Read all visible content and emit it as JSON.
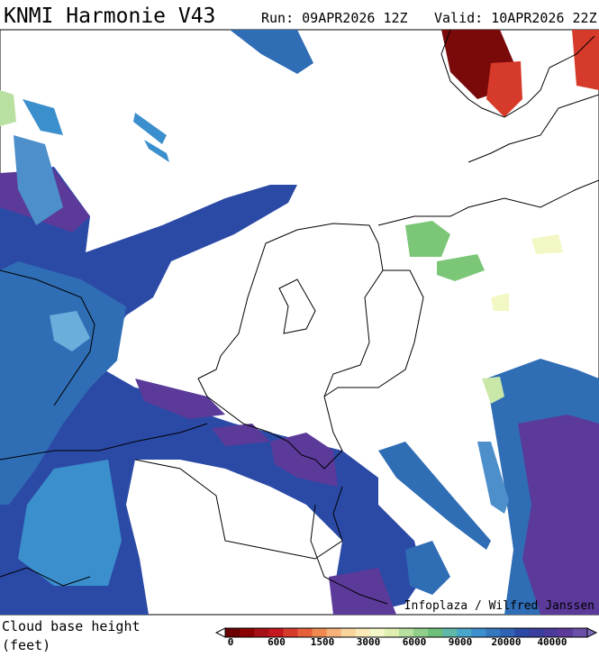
{
  "header": {
    "title": "KNMI Harmonie V43",
    "run": "Run: 09APR2026 12Z",
    "valid": "Valid: 10APR2026 22Z"
  },
  "map": {
    "credit": "Infoplaza / Wilfred Janssen"
  },
  "legend": {
    "label": "Cloud base height",
    "unit": "(feet)",
    "ticks": [
      0,
      600,
      1500,
      3000,
      6000,
      9000,
      20000,
      40000
    ]
  }
}
